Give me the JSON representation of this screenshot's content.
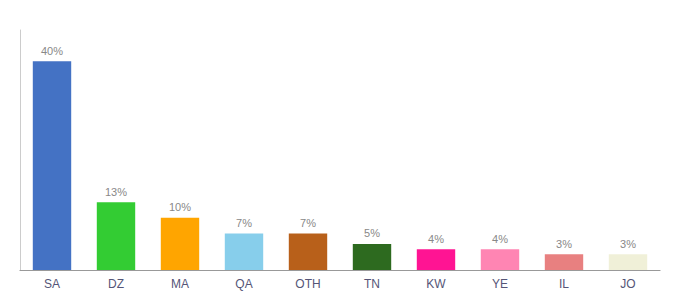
{
  "chart_data": {
    "type": "bar",
    "categories": [
      "SA",
      "DZ",
      "MA",
      "QA",
      "OTH",
      "TN",
      "KW",
      "YE",
      "IL",
      "JO"
    ],
    "values": [
      40,
      13,
      10,
      7,
      7,
      5,
      4,
      4,
      3,
      3
    ],
    "value_labels": [
      "40%",
      "13%",
      "10%",
      "7%",
      "7%",
      "5%",
      "4%",
      "4%",
      "3%",
      "3%"
    ],
    "colors": [
      "#4472c4",
      "#33cc33",
      "#ffa500",
      "#87ceeb",
      "#b8601a",
      "#2d6a1f",
      "#ff1493",
      "#ff85b3",
      "#e88080",
      "#f0f0d8"
    ],
    "ylim": [
      0,
      46
    ],
    "data_labels": true,
    "tick_labels": "x",
    "grid": false
  }
}
